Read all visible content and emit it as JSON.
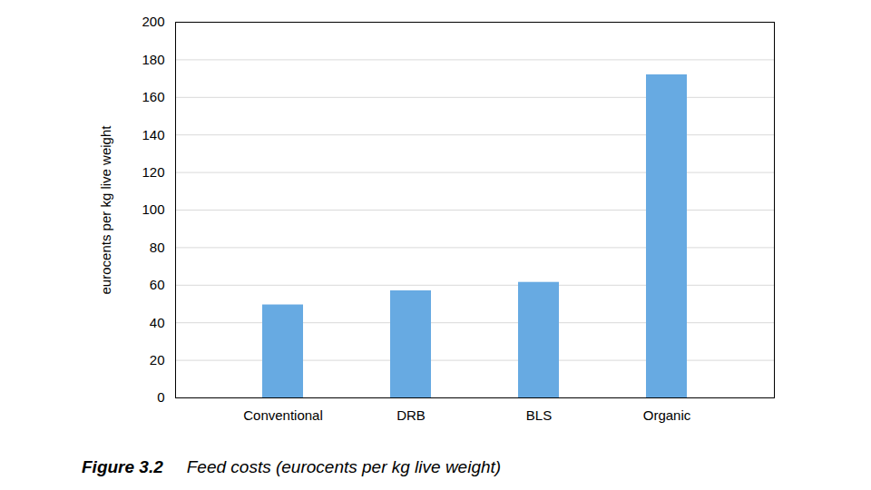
{
  "chart_data": {
    "type": "bar",
    "figure_label": "Figure 3.2",
    "title": "Feed costs (eurocents per kg live weight)",
    "ylabel": "eurocents per kg live weight",
    "categories": [
      "Conventional",
      "DRB",
      "BLS",
      "Organic"
    ],
    "values": [
      49.5,
      57,
      61.5,
      172
    ],
    "color": "#67aae2",
    "ylim": [
      0,
      200
    ],
    "yticks": [
      0,
      20,
      40,
      60,
      80,
      100,
      120,
      140,
      160,
      180,
      200
    ],
    "grid": true
  }
}
